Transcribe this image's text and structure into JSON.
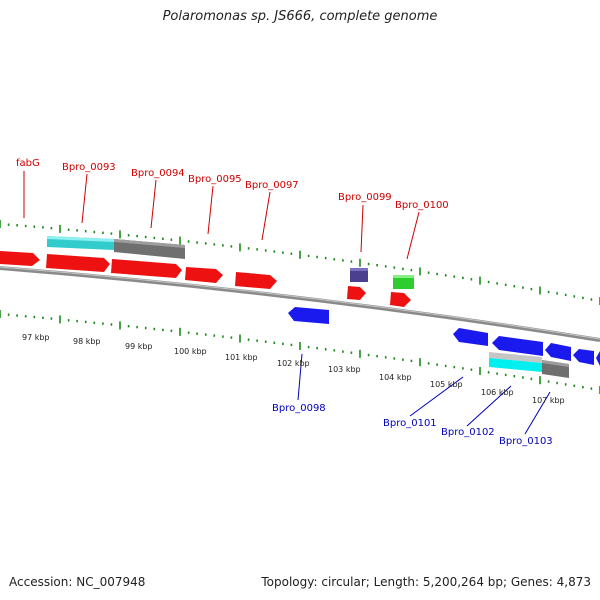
{
  "title": "Polaromonas sp. JS666, complete genome",
  "accession": "Accession: NC_007948",
  "summary": "Topology: circular; Length: 5,200,264 bp; Genes: 4,873",
  "colors": {
    "forward_gene": "#ee1111",
    "reverse_gene": "#1a1aee",
    "rrna": "#2ecc2e",
    "misc": "#4b3f8f",
    "tick": "#1a8a1a",
    "backbone": "#808080",
    "cds_feature": "#33cccc",
    "gray_feature": "#707070",
    "forward_label": "#cc0000",
    "reverse_label": "#0000bb"
  },
  "kbp_labels": [
    "97 kbp",
    "98 kbp",
    "99 kbp",
    "100 kbp",
    "101 kbp",
    "102 kbp",
    "103 kbp",
    "104 kbp",
    "105 kbp",
    "106 kbp",
    "107 kbp"
  ],
  "forward_labels": [
    "fabG",
    "Bpro_0093",
    "Bpro_0094",
    "Bpro_0095",
    "Bpro_0097",
    "Bpro_0099",
    "Bpro_0100"
  ],
  "reverse_labels": [
    "Bpro_0098",
    "Bpro_0101",
    "Bpro_0102",
    "Bpro_0103"
  ]
}
